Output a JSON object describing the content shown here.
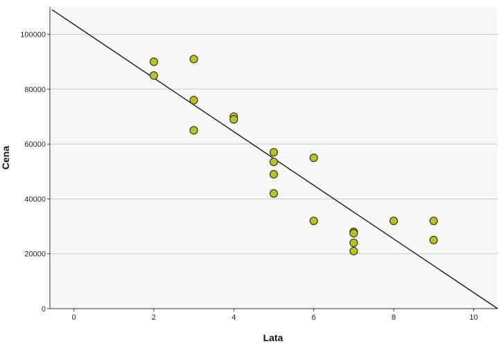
{
  "chart_data": {
    "type": "scatter",
    "title": "",
    "xlabel": "Lata",
    "ylabel": "Cena",
    "xlim": [
      -0.6,
      10.6
    ],
    "ylim": [
      0,
      110000
    ],
    "x_ticks": [
      0,
      2,
      4,
      6,
      8,
      10
    ],
    "y_ticks": [
      0,
      20000,
      40000,
      60000,
      80000,
      100000
    ],
    "x_tick_labels": [
      "0",
      "2",
      "4",
      "6",
      "8",
      "10"
    ],
    "y_tick_labels": [
      "0",
      "20000",
      "40000",
      "60000",
      "80000",
      "100000"
    ],
    "grid": "horizontal",
    "points": [
      {
        "x": 2,
        "y": 90000
      },
      {
        "x": 2,
        "y": 85000
      },
      {
        "x": 3,
        "y": 91000
      },
      {
        "x": 3,
        "y": 76000
      },
      {
        "x": 3,
        "y": 65000
      },
      {
        "x": 4,
        "y": 70000
      },
      {
        "x": 4,
        "y": 69000
      },
      {
        "x": 5,
        "y": 57000
      },
      {
        "x": 5,
        "y": 53500
      },
      {
        "x": 5,
        "y": 49000
      },
      {
        "x": 5,
        "y": 42000
      },
      {
        "x": 6,
        "y": 55000
      },
      {
        "x": 6,
        "y": 32000
      },
      {
        "x": 7,
        "y": 28000
      },
      {
        "x": 7,
        "y": 27500
      },
      {
        "x": 7,
        "y": 24000
      },
      {
        "x": 7,
        "y": 21000
      },
      {
        "x": 8,
        "y": 32000
      },
      {
        "x": 9,
        "y": 32000
      },
      {
        "x": 9,
        "y": 25000
      }
    ],
    "fit_line": {
      "x": [
        -0.55,
        10.6
      ],
      "y": [
        109000,
        0
      ]
    },
    "colors": {
      "marker_fill": "#b9c12a",
      "marker_stroke": "#3a3a10",
      "line": "#1a1a1a",
      "grid": "#c8c8c8",
      "plot_bg": "#f7f7f7"
    }
  }
}
